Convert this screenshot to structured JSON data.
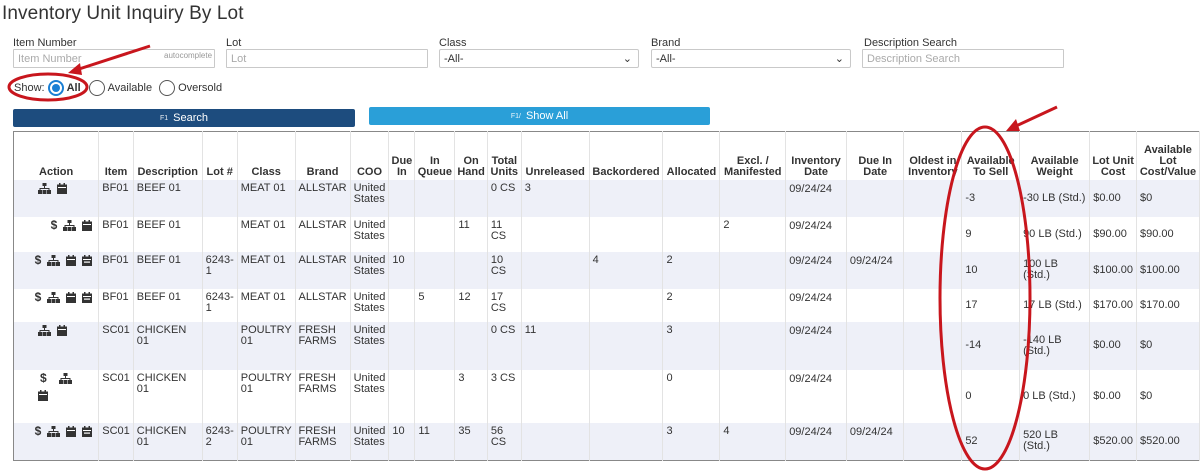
{
  "page": {
    "title": "Inventory Unit Inquiry By Lot"
  },
  "filters": {
    "item_number": {
      "label": "Item Number",
      "placeholder": "Item Number",
      "hint": "autocomplete"
    },
    "lot": {
      "label": "Lot",
      "placeholder": "Lot"
    },
    "class": {
      "label": "Class",
      "value": "-All-"
    },
    "brand": {
      "label": "Brand",
      "value": "-All-"
    },
    "description": {
      "label": "Description Search",
      "placeholder": "Description Search"
    }
  },
  "show": {
    "label": "Show:",
    "options": [
      "All",
      "Available",
      "Oversold"
    ],
    "selected": "All"
  },
  "buttons": {
    "search": {
      "key": "F1",
      "label": "Search"
    },
    "show_all": {
      "key": "F1/",
      "label": "Show All"
    }
  },
  "table": {
    "headers": [
      "Action",
      "Item",
      "Description",
      "Lot #",
      "Class",
      "Brand",
      "COO",
      "Due In",
      "In Queue",
      "On Hand",
      "Total Units",
      "Unreleased",
      "Backordered",
      "Allocated",
      "Excl. / Manifested",
      "Inventory Date",
      "Due In Date",
      "Oldest in Inventory",
      "Available To Sell",
      "Available Weight",
      "Lot Unit Cost",
      "Available Lot Cost/Value"
    ],
    "rows": [
      {
        "actions": [
          "sitemap",
          "calendar"
        ],
        "item": "BF01",
        "description": "BEEF 01",
        "lot": "",
        "class": "MEAT 01",
        "brand": "ALLSTAR",
        "coo": "United States",
        "due_in": "",
        "in_queue": "",
        "on_hand": "",
        "total_units": "0 CS",
        "unreleased": "3",
        "backordered": "",
        "allocated": "",
        "excl": "",
        "inv_date": "09/24/24",
        "due_date": "",
        "oldest": "",
        "avail_sell": "-3",
        "avail_weight": "-30 LB (Std.)",
        "unit_cost": "$0.00",
        "lot_value": "$0"
      },
      {
        "actions": [
          "dollar",
          "sitemap",
          "calendar"
        ],
        "item": "BF01",
        "description": "BEEF 01",
        "lot": "",
        "class": "MEAT 01",
        "brand": "ALLSTAR",
        "coo": "United States",
        "due_in": "",
        "in_queue": "",
        "on_hand": "11",
        "total_units": "11 CS",
        "unreleased": "",
        "backordered": "",
        "allocated": "",
        "excl": "2",
        "inv_date": "09/24/24",
        "due_date": "",
        "oldest": "",
        "avail_sell": "9",
        "avail_weight": "90 LB (Std.)",
        "unit_cost": "$90.00",
        "lot_value": "$90.00"
      },
      {
        "actions": [
          "dollar",
          "sitemap",
          "calendar",
          "calendar-check"
        ],
        "item": "BF01",
        "description": "BEEF 01",
        "lot": "6243-1",
        "class": "MEAT 01",
        "brand": "ALLSTAR",
        "coo": "United States",
        "due_in": "10",
        "in_queue": "",
        "on_hand": "",
        "total_units": "10 CS",
        "unreleased": "",
        "backordered": "4",
        "allocated": "2",
        "excl": "",
        "inv_date": "09/24/24",
        "due_date": "09/24/24",
        "oldest": "",
        "avail_sell": "10",
        "avail_weight": "100 LB (Std.)",
        "unit_cost": "$100.00",
        "lot_value": "$100.00"
      },
      {
        "actions": [
          "dollar",
          "sitemap",
          "calendar",
          "calendar-check"
        ],
        "item": "BF01",
        "description": "BEEF 01",
        "lot": "6243-1",
        "class": "MEAT 01",
        "brand": "ALLSTAR",
        "coo": "United States",
        "due_in": "",
        "in_queue": "5",
        "on_hand": "12",
        "total_units": "17 CS",
        "unreleased": "",
        "backordered": "",
        "allocated": "2",
        "excl": "",
        "inv_date": "09/24/24",
        "due_date": "",
        "oldest": "",
        "avail_sell": "17",
        "avail_weight": "17 LB (Std.)",
        "unit_cost": "$170.00",
        "lot_value": "$170.00"
      },
      {
        "actions": [
          "sitemap",
          "calendar"
        ],
        "item": "SC01",
        "description": "CHICKEN 01",
        "lot": "",
        "class": "POULTRY 01",
        "brand": "FRESH FARMS",
        "coo": "United States",
        "due_in": "",
        "in_queue": "",
        "on_hand": "",
        "total_units": "0 CS",
        "unreleased": "11",
        "backordered": "",
        "allocated": "3",
        "excl": "",
        "inv_date": "09/24/24",
        "due_date": "",
        "oldest": "",
        "avail_sell": "-14",
        "avail_weight": "-140 LB (Std.)",
        "unit_cost": "$0.00",
        "lot_value": "$0"
      },
      {
        "actions": [
          "dollar",
          "sitemap",
          "calendar"
        ],
        "item": "SC01",
        "description": "CHICKEN 01",
        "lot": "",
        "class": "POULTRY 01",
        "brand": "FRESH FARMS",
        "coo": "United States",
        "due_in": "",
        "in_queue": "",
        "on_hand": "3",
        "total_units": "3 CS",
        "unreleased": "",
        "backordered": "",
        "allocated": "0",
        "excl": "",
        "inv_date": "09/24/24",
        "due_date": "",
        "oldest": "",
        "avail_sell": "0",
        "avail_weight": "0 LB (Std.)",
        "unit_cost": "$0.00",
        "lot_value": "$0"
      },
      {
        "actions": [
          "dollar",
          "sitemap",
          "calendar",
          "calendar-check"
        ],
        "item": "SC01",
        "description": "CHICKEN 01",
        "lot": "6243-2",
        "class": "POULTRY 01",
        "brand": "FRESH FARMS",
        "coo": "United States",
        "due_in": "10",
        "in_queue": "11",
        "on_hand": "35",
        "total_units": "56 CS",
        "unreleased": "",
        "backordered": "",
        "allocated": "3",
        "excl": "4",
        "inv_date": "09/24/24",
        "due_date": "09/24/24",
        "oldest": "",
        "avail_sell": "52",
        "avail_weight": "520 LB (Std.)",
        "unit_cost": "$520.00",
        "lot_value": "$520.00"
      }
    ]
  },
  "colors": {
    "accent": "#1a7fd4",
    "search_button": "#1d4c7e",
    "show_all_button": "#2a9fd8",
    "negative": "#d9342b",
    "annotation": "#c8161d",
    "row_alt": "#eef0f8"
  }
}
